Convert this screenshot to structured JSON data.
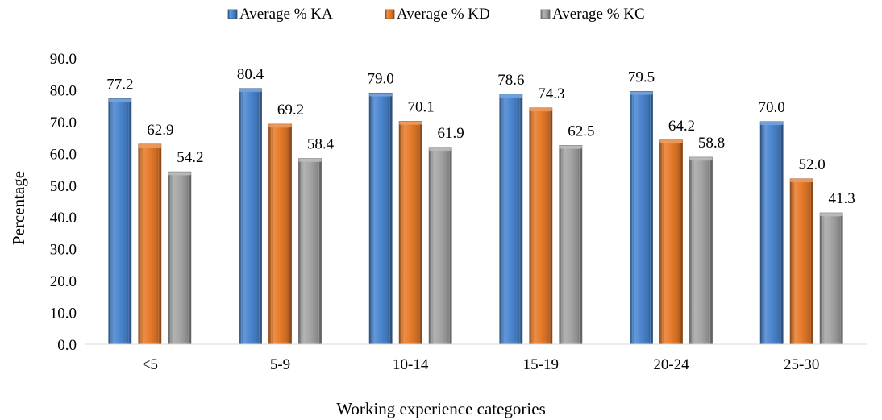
{
  "chart_data": {
    "type": "bar",
    "title": "",
    "xlabel": "Working experience categories",
    "ylabel": "Percentage",
    "categories": [
      "<5",
      "5-9",
      "10-14",
      "15-19",
      "20-24",
      "25-30"
    ],
    "series": [
      {
        "name": "Average % KA",
        "values": [
          77.2,
          80.4,
          79.0,
          78.6,
          79.5,
          70.0
        ],
        "color": "#4a86d0"
      },
      {
        "name": "Average % KD",
        "values": [
          62.9,
          69.2,
          70.1,
          74.3,
          64.2,
          52.0
        ],
        "color": "#e87b2a"
      },
      {
        "name": "Average % KC",
        "values": [
          54.2,
          58.4,
          61.9,
          62.5,
          58.8,
          41.3
        ],
        "color": "#a5a5a5"
      }
    ],
    "ylim": [
      0,
      90
    ],
    "yticks": [
      "0.0",
      "10.0",
      "20.0",
      "30.0",
      "40.0",
      "50.0",
      "60.0",
      "70.0",
      "80.0",
      "90.0"
    ],
    "grid": false,
    "legend": "top-center"
  }
}
